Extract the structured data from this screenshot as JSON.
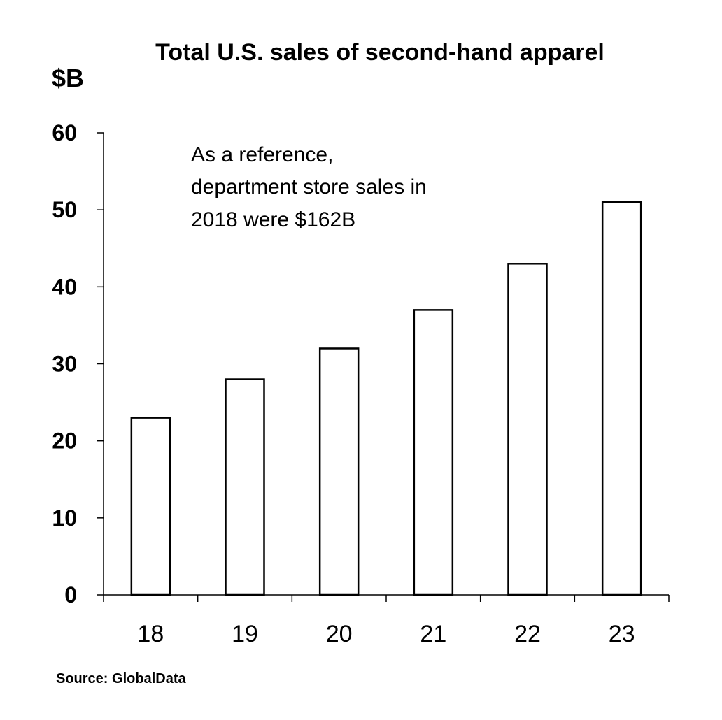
{
  "chart_data": {
    "type": "bar",
    "title": "Total U.S. sales of second-hand apparel",
    "ylabel": "$B",
    "xlabel": "",
    "categories": [
      "18",
      "19",
      "20",
      "21",
      "22",
      "23"
    ],
    "values": [
      23,
      28,
      32,
      37,
      43,
      51
    ],
    "ylim": [
      0,
      60
    ],
    "yticks": [
      "0",
      "10",
      "20",
      "30",
      "40",
      "50",
      "60"
    ],
    "annotation": [
      "As a reference,",
      "department store sales in",
      "2018 were $162B"
    ],
    "source": "Source: GlobalData",
    "grid": false,
    "legend": "none",
    "colors": {
      "bar_fill": "#ffffff",
      "bar_stroke": "#000000",
      "axis": "#000000"
    }
  }
}
